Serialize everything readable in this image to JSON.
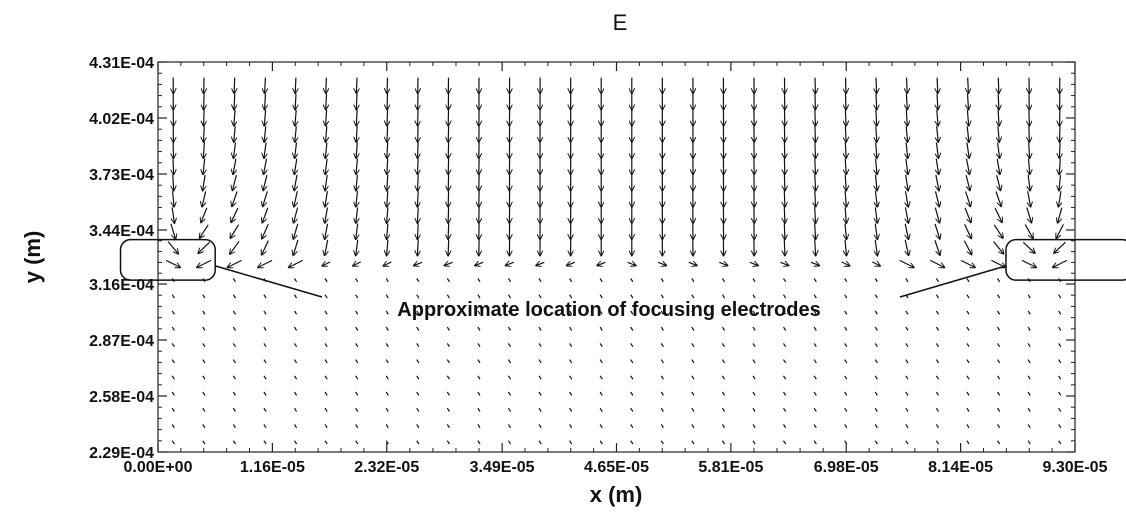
{
  "chart_data": {
    "type": "quiver",
    "title": "E",
    "xlabel": "x (m)",
    "ylabel": "y (m)",
    "xlim": [
      0.0,
      9.3e-05
    ],
    "ylim": [
      0.000229,
      0.000431
    ],
    "x_ticks": [
      {
        "value": 0.0,
        "label": "0.00E+00"
      },
      {
        "value": 1.16e-05,
        "label": "1.16E-05"
      },
      {
        "value": 2.32e-05,
        "label": "2.32E-05"
      },
      {
        "value": 3.49e-05,
        "label": "3.49E-05"
      },
      {
        "value": 4.65e-05,
        "label": "4.65E-05"
      },
      {
        "value": 5.81e-05,
        "label": "5.81E-05"
      },
      {
        "value": 6.98e-05,
        "label": "6.98E-05"
      },
      {
        "value": 8.14e-05,
        "label": "8.14E-05"
      },
      {
        "value": 9.3e-05,
        "label": "9.30E-05"
      }
    ],
    "y_ticks": [
      {
        "value": 0.000229,
        "label": "2.29E-04"
      },
      {
        "value": 0.000258,
        "label": "2.58E-04"
      },
      {
        "value": 0.000287,
        "label": "2.87E-04"
      },
      {
        "value": 0.000316,
        "label": "3.16E-04"
      },
      {
        "value": 0.000344,
        "label": "3.44E-04"
      },
      {
        "value": 0.000373,
        "label": "3.73E-04"
      },
      {
        "value": 0.000402,
        "label": "4.02E-04"
      },
      {
        "value": 0.000431,
        "label": "4.31E-04"
      }
    ],
    "field": {
      "x_start": 1.55e-06,
      "x_step": 3.1e-06,
      "columns": 30,
      "y_start": 0.000234,
      "y_step": 8.4e-06,
      "rows": 23,
      "electrode_y": 0.00033,
      "electrodes_x": [
        2.3e-06,
        9e-05
      ]
    },
    "grid": false,
    "legend": "none",
    "annotations": [
      {
        "text": "Approximate location of focusing electrodes",
        "electrode_regions": [
          {
            "x": [
              -3.8e-06,
              5.8e-06
            ],
            "y": [
              0.000318,
              0.000339
            ]
          },
          {
            "x": [
              8.6e-05,
              9.88e-05
            ],
            "y": [
              0.000318,
              0.000339
            ]
          }
        ]
      }
    ]
  }
}
